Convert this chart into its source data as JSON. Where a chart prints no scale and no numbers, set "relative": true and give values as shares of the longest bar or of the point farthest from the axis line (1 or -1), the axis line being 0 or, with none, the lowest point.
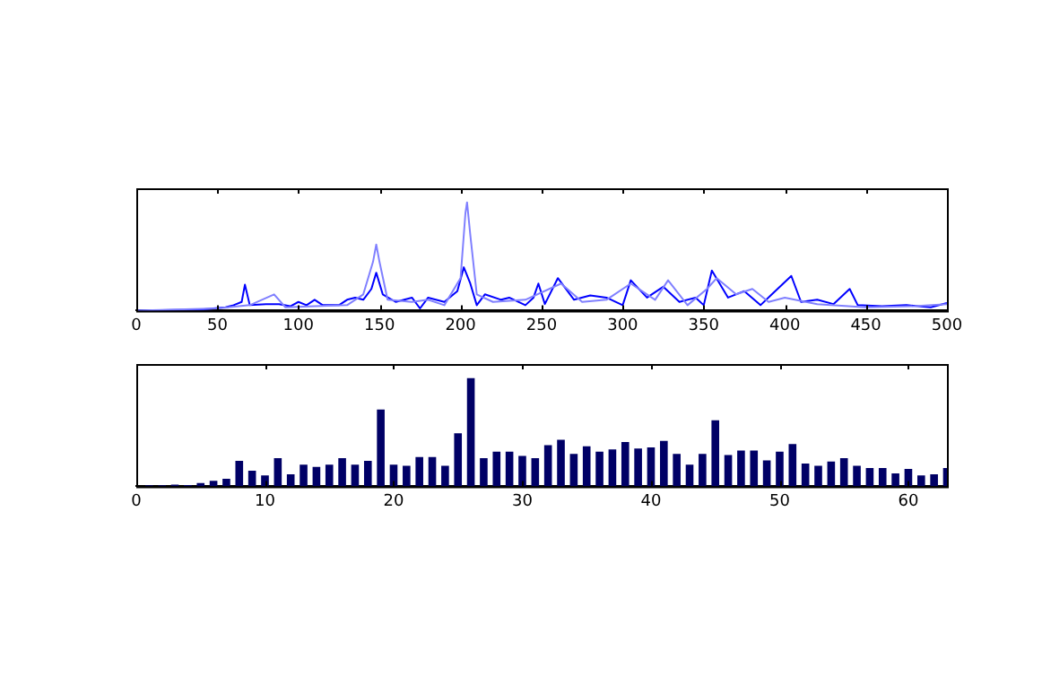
{
  "chart_data": [
    {
      "type": "line",
      "relative": true,
      "xlim": [
        0,
        500
      ],
      "xticks": [
        0,
        50,
        100,
        150,
        200,
        250,
        300,
        350,
        400,
        450,
        500
      ],
      "tick_labels": "x",
      "grid": false,
      "legend": false,
      "marker": "none",
      "line_style": "solid",
      "series": [
        {
          "color": "#8080ff",
          "x": [
            0,
            50,
            70,
            85,
            92,
            110,
            130,
            140,
            146,
            148,
            150,
            155,
            170,
            180,
            190,
            200,
            203,
            204,
            206,
            210,
            220,
            240,
            262,
            275,
            290,
            305,
            320,
            328,
            340,
            352,
            358,
            370,
            380,
            390,
            400,
            420,
            450,
            480,
            500
          ],
          "values": [
            0,
            0.02,
            0.05,
            0.15,
            0.03,
            0.04,
            0.05,
            0.15,
            0.45,
            0.61,
            0.45,
            0.1,
            0.08,
            0.1,
            0.05,
            0.3,
            0.9,
            1,
            0.7,
            0.15,
            0.08,
            0.1,
            0.25,
            0.08,
            0.1,
            0.25,
            0.1,
            0.28,
            0.05,
            0.2,
            0.3,
            0.15,
            0.2,
            0.08,
            0.12,
            0.06,
            0.03,
            0.04,
            0.06
          ]
        },
        {
          "color": "#0000ff",
          "x": [
            0,
            40,
            55,
            60,
            65,
            67,
            70,
            80,
            88,
            95,
            100,
            105,
            110,
            115,
            125,
            130,
            135,
            140,
            145,
            148,
            152,
            160,
            170,
            175,
            180,
            190,
            198,
            202,
            206,
            210,
            215,
            225,
            230,
            240,
            245,
            248,
            252,
            260,
            270,
            280,
            290,
            300,
            305,
            315,
            325,
            335,
            345,
            350,
            355,
            365,
            375,
            385,
            392,
            404,
            410,
            420,
            430,
            440,
            445,
            460,
            475,
            490,
            500
          ],
          "values": [
            0,
            0.01,
            0.03,
            0.05,
            0.08,
            0.24,
            0.05,
            0.06,
            0.06,
            0.04,
            0.08,
            0.05,
            0.1,
            0.05,
            0.05,
            0.1,
            0.12,
            0.1,
            0.2,
            0.35,
            0.15,
            0.08,
            0.12,
            0.02,
            0.12,
            0.08,
            0.18,
            0.4,
            0.25,
            0.05,
            0.15,
            0.1,
            0.12,
            0.05,
            0.12,
            0.25,
            0.06,
            0.3,
            0.1,
            0.14,
            0.12,
            0.05,
            0.28,
            0.12,
            0.22,
            0.08,
            0.12,
            0.05,
            0.37,
            0.12,
            0.18,
            0.05,
            0.15,
            0.32,
            0.08,
            0.1,
            0.06,
            0.2,
            0.05,
            0.04,
            0.05,
            0.03,
            0.07
          ]
        }
      ]
    },
    {
      "type": "bar",
      "relative": true,
      "xlim": [
        0,
        63
      ],
      "xticks": [
        0,
        10,
        20,
        30,
        40,
        50,
        60
      ],
      "tick_labels": "x",
      "grid": false,
      "legend": false,
      "color": "#000066",
      "x": [
        1,
        2,
        3,
        4,
        5,
        6,
        7,
        8,
        9,
        10,
        11,
        12,
        13,
        14,
        15,
        16,
        17,
        18,
        19,
        20,
        21,
        22,
        23,
        24,
        25,
        26,
        27,
        28,
        29,
        30,
        31,
        32,
        33,
        34,
        35,
        36,
        37,
        38,
        39,
        40,
        41,
        42,
        43,
        44,
        45,
        46,
        47,
        48,
        49,
        50,
        51,
        52,
        53,
        54,
        55,
        56,
        57,
        58,
        59,
        60,
        61,
        62,
        63
      ],
      "values": [
        0.01,
        0.01,
        0.016,
        0.012,
        0.03,
        0.05,
        0.07,
        0.235,
        0.145,
        0.1,
        0.26,
        0.11,
        0.2,
        0.18,
        0.2,
        0.26,
        0.2,
        0.235,
        0.71,
        0.2,
        0.19,
        0.27,
        0.27,
        0.19,
        0.49,
        1,
        0.26,
        0.32,
        0.32,
        0.28,
        0.26,
        0.38,
        0.43,
        0.3,
        0.37,
        0.32,
        0.34,
        0.41,
        0.35,
        0.36,
        0.42,
        0.3,
        0.2,
        0.3,
        0.61,
        0.29,
        0.33,
        0.33,
        0.24,
        0.32,
        0.39,
        0.21,
        0.19,
        0.23,
        0.26,
        0.19,
        0.17,
        0.17,
        0.12,
        0.16,
        0.1,
        0.11,
        0.17
      ]
    }
  ]
}
